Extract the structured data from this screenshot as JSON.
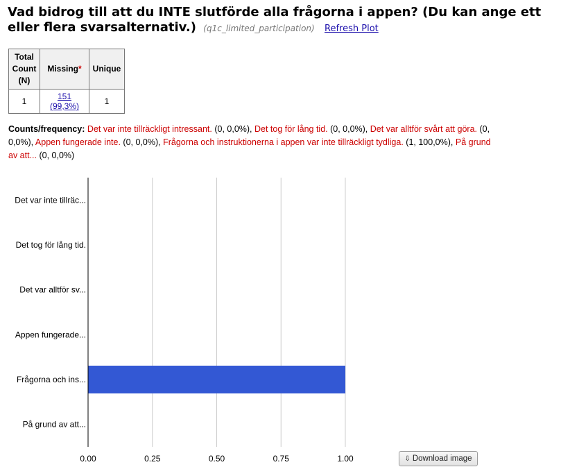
{
  "header": {
    "title": "Vad bidrog till att du INTE slutförde alla frågorna i appen? (Du kan ange ett eller flera svarsalternativ.)",
    "variable_name": "(q1c_limited_participation)",
    "refresh_label": "Refresh Plot"
  },
  "stats_table": {
    "headers": {
      "total": "Total Count (N)",
      "missing": "Missing",
      "missing_marker": "*",
      "unique": "Unique"
    },
    "values": {
      "total": "1",
      "missing": "151 (99,3%)",
      "unique": "1"
    }
  },
  "counts": {
    "label": "Counts/frequency:",
    "items": [
      {
        "category": "Det var inte tillräckligt intressant.",
        "value": " (0, 0,0%), "
      },
      {
        "category": "Det tog för lång tid.",
        "value": " (0, 0,0%), "
      },
      {
        "category": "Det var alltför svårt att göra.",
        "value": " (0, 0,0%), "
      },
      {
        "category": "Appen fungerade inte.",
        "value": " (0, 0,0%), "
      },
      {
        "category": "Frågorna och instruktionerna i appen var inte tillräckligt tydliga.",
        "value": " (1, 100,0%), "
      },
      {
        "category": "På grund av att...",
        "value": " (0, 0,0%)"
      }
    ]
  },
  "chart_data": {
    "type": "bar",
    "orientation": "horizontal",
    "categories": [
      "Det var inte tillräc...",
      "Det tog för lång tid.",
      "Det var alltför sv...",
      "Appen fungerade...",
      "Frågorna och ins...",
      "På grund av att..."
    ],
    "values": [
      0,
      0,
      0,
      0,
      1,
      0
    ],
    "xlim": [
      0,
      1
    ],
    "xticks": [
      "0.00",
      "0.25",
      "0.50",
      "0.75",
      "1.00"
    ],
    "xtick_values": [
      0,
      0.25,
      0.5,
      0.75,
      1
    ],
    "grid": true,
    "bar_color": "#3358d4",
    "grid_color": "#cccccc"
  },
  "download": {
    "label": "Download image",
    "icon": "download-icon"
  }
}
